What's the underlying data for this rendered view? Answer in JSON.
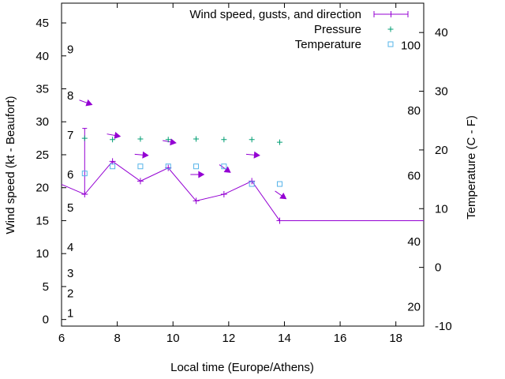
{
  "chart_data": {
    "type": "line",
    "xlabel": "Local time (Europe/Athens)",
    "ylabel": "Wind speed (kt - Beaufort)",
    "y2label": "Temperature (C - F)",
    "xlim": [
      6,
      19
    ],
    "ylim": [
      -1,
      48
    ],
    "y2lim": [
      -10,
      45
    ],
    "x_ticks": [
      "6",
      "8",
      "10",
      "12",
      "14",
      "16",
      "18"
    ],
    "y_ticks": [
      "0",
      "5",
      "10",
      "15",
      "20",
      "25",
      "30",
      "35",
      "40",
      "45"
    ],
    "y2_ticks": [
      "-10",
      "0",
      "10",
      "20",
      "30",
      "40"
    ],
    "beaufort_labels": [
      {
        "text": "1",
        "kt": 1
      },
      {
        "text": "2",
        "kt": 4
      },
      {
        "text": "3",
        "kt": 7
      },
      {
        "text": "4",
        "kt": 11
      },
      {
        "text": "5",
        "kt": 17
      },
      {
        "text": "6",
        "kt": 22
      },
      {
        "text": "7",
        "kt": 28
      },
      {
        "text": "8",
        "kt": 34
      },
      {
        "text": "9",
        "kt": 41
      }
    ],
    "fahrenheit_labels": [
      {
        "text": "20",
        "c": -6.7
      },
      {
        "text": "40",
        "c": 4.4
      },
      {
        "text": "60",
        "c": 15.6
      },
      {
        "text": "80",
        "c": 26.7
      },
      {
        "text": "100",
        "c": 37.8
      }
    ],
    "series": [
      {
        "name": "Wind speed, gusts, and direction",
        "color": "#9400d3",
        "x": [
          6.0,
          6.83,
          7.83,
          8.83,
          9.83,
          10.83,
          11.83,
          12.83,
          13.83,
          19.0
        ],
        "y": [
          20.5,
          19,
          24,
          21,
          23,
          18,
          19,
          21,
          15,
          15
        ],
        "gusts": [
          {
            "x": 6.83,
            "low": 19,
            "high": 29
          }
        ],
        "directions": [
          {
            "x": 6.83,
            "y": 33,
            "angle": 20
          },
          {
            "x": 7.83,
            "y": 28,
            "angle": 10
          },
          {
            "x": 8.83,
            "y": 25,
            "angle": 5
          },
          {
            "x": 9.83,
            "y": 27,
            "angle": 10
          },
          {
            "x": 10.83,
            "y": 22,
            "angle": 0
          },
          {
            "x": 11.83,
            "y": 23,
            "angle": 35
          },
          {
            "x": 12.83,
            "y": 25,
            "angle": 5
          },
          {
            "x": 13.83,
            "y": 19,
            "angle": 35
          }
        ]
      },
      {
        "name": "Pressure",
        "color": "#009e73",
        "x": [
          6.83,
          7.83,
          8.83,
          9.83,
          10.83,
          11.83,
          12.83,
          13.83
        ],
        "y": [
          27.5,
          27.3,
          27.4,
          27.3,
          27.4,
          27.3,
          27.3,
          26.9
        ]
      },
      {
        "name": "Temperature",
        "color": "#56b4e9",
        "x": [
          6.83,
          7.83,
          8.83,
          9.83,
          10.83,
          11.83,
          12.83,
          13.83
        ],
        "y2": [
          16,
          17.2,
          17.2,
          17.2,
          17.2,
          17.2,
          14.2,
          14.2
        ]
      }
    ],
    "legend_position": "top-right",
    "grid": false
  }
}
